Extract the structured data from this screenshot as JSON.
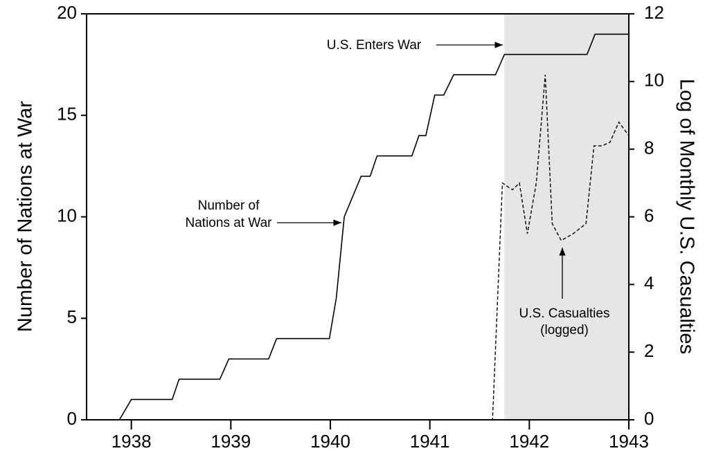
{
  "chart_data": {
    "type": "line",
    "ylabel": "Number of Nations at War",
    "y2label": "Log of Monthly U.S. Casualties",
    "xlim": [
      1937.55,
      1943
    ],
    "xticks": [
      1938,
      1939,
      1940,
      1941,
      1942,
      1943
    ],
    "ylim": [
      0,
      20
    ],
    "yticks": [
      0,
      5,
      10,
      15,
      20
    ],
    "y2lim": [
      0,
      12
    ],
    "y2ticks": [
      0,
      2,
      4,
      6,
      8,
      10,
      12
    ],
    "shade": [
      1941.75,
      1943
    ],
    "shade_color": "#e6e6e6",
    "series": [
      {
        "color": "#000000",
        "dash": false,
        "x": [
          1937.55,
          1937.88,
          1938.0,
          1938.41,
          1938.48,
          1938.89,
          1938.98,
          1939.38,
          1939.46,
          1939.99,
          1940.06,
          1940.14,
          1940.31,
          1940.4,
          1940.47,
          1940.82,
          1940.89,
          1940.96,
          1941.05,
          1941.14,
          1941.24,
          1941.66,
          1941.75,
          1942.58,
          1942.66,
          1943.0
        ],
        "values": [
          0,
          0,
          1,
          1,
          2,
          2,
          3,
          3,
          4,
          4,
          6,
          10,
          12,
          12,
          13,
          13,
          14,
          14,
          16,
          16,
          17,
          17,
          18,
          18,
          19,
          19
        ]
      },
      {
        "color": "#000000",
        "dash": true,
        "axis": "y2",
        "x": [
          1937.55,
          1941.63,
          1941.73,
          1941.83,
          1941.9,
          1941.98,
          1942.07,
          1942.16,
          1942.23,
          1942.32,
          1942.44,
          1942.57,
          1942.65,
          1942.73,
          1942.81,
          1942.9,
          1943.0
        ],
        "values": [
          0,
          0,
          7,
          6.8,
          7,
          5.5,
          7,
          10.2,
          5.8,
          5.3,
          5.5,
          5.8,
          8.1,
          8.1,
          8.2,
          8.8,
          8.4
        ]
      }
    ],
    "annotations": [
      {
        "lines": [
          "U.S. Enters War"
        ]
      },
      {
        "lines": [
          "Number of",
          "Nations at War"
        ]
      },
      {
        "lines": [
          "U.S. Casualties",
          "(logged)"
        ]
      }
    ]
  }
}
